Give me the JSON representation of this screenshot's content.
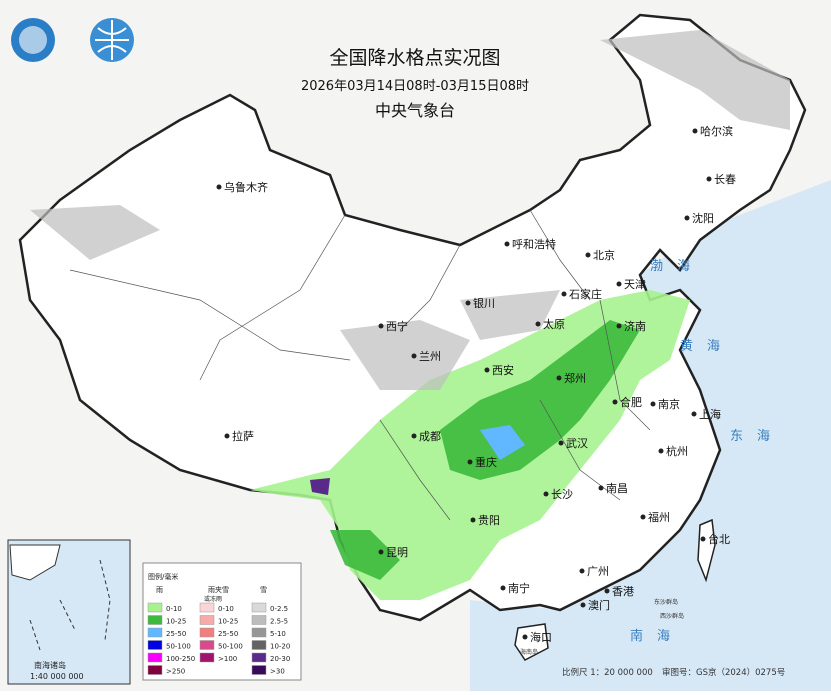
{
  "header": {
    "title": "全国降水格点实况图",
    "subtitle": "2026年03月14日08时-03月15日08时",
    "agency": "中央气象台"
  },
  "cities": [
    "乌鲁木齐",
    "哈尔滨",
    "长春",
    "沈阳",
    "呼和浩特",
    "北京",
    "天津",
    "石家庄",
    "太原",
    "济南",
    "银川",
    "西宁",
    "兰州",
    "西安",
    "郑州",
    "合肥",
    "南京",
    "上海",
    "拉萨",
    "成都",
    "重庆",
    "武汉",
    "杭州",
    "长沙",
    "南昌",
    "福州",
    "台北",
    "贵阳",
    "昆明",
    "南宁",
    "广州",
    "香港",
    "澳门",
    "海口"
  ],
  "seas": [
    "渤海",
    "黄海",
    "东海",
    "南海"
  ],
  "islands": [
    "东沙群岛",
    "西沙群岛",
    "海南岛"
  ],
  "legend": {
    "title": "图例/毫米",
    "columns": [
      {
        "label": "雨",
        "items": [
          {
            "label": "0-10",
            "color": "#a6f28f"
          },
          {
            "label": "10-25",
            "color": "#3dba3d"
          },
          {
            "label": "25-50",
            "color": "#61b8ff"
          },
          {
            "label": "50-100",
            "color": "#0000e1"
          },
          {
            "label": "100-250",
            "color": "#fa00fa"
          },
          {
            "label": ">250",
            "color": "#800040"
          }
        ]
      },
      {
        "label": "雨夹雪",
        "sublabel": "或冻雨",
        "items": [
          {
            "label": "0-10",
            "color": "#fbd5d5"
          },
          {
            "label": "10-25",
            "color": "#f6aaaa"
          },
          {
            "label": "25-50",
            "color": "#f08080"
          },
          {
            "label": "50-100",
            "color": "#d84a8a"
          },
          {
            "label": ">100",
            "color": "#a0146e"
          }
        ]
      },
      {
        "label": "雪",
        "items": [
          {
            "label": "0-2.5",
            "color": "#d9d9d9"
          },
          {
            "label": "2.5-5",
            "color": "#bdbdbd"
          },
          {
            "label": "5-10",
            "color": "#969696"
          },
          {
            "label": "10-20",
            "color": "#636363"
          },
          {
            "label": "20-30",
            "color": "#5a2a8a"
          },
          {
            "label": ">30",
            "color": "#3a0a5a"
          }
        ]
      }
    ]
  },
  "inset": {
    "title": "南海诸岛",
    "scale": "1:40 000 000"
  },
  "footer": {
    "scale": "比例尺 1：20 000 000",
    "review": "审图号：GS京（2024）0275号"
  }
}
